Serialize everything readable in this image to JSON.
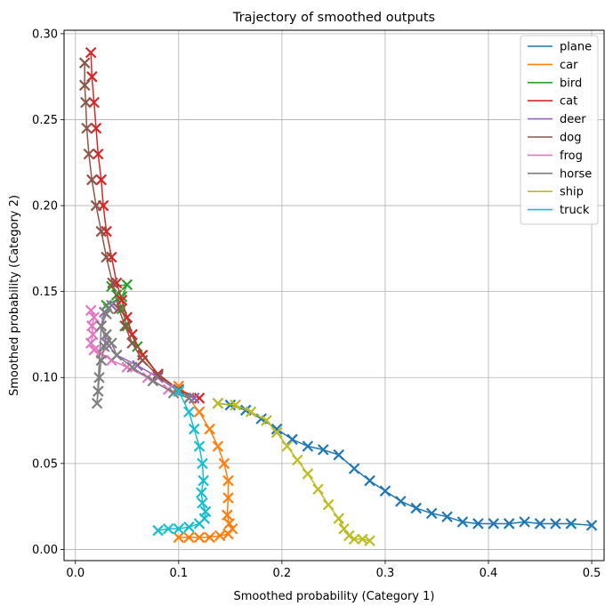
{
  "chart_data": {
    "type": "line",
    "title": "Trajectory of smoothed outputs",
    "xlabel": "Smoothed probability (Category 1)",
    "ylabel": "Smoothed probability (Category 2)",
    "xlim": [
      -0.011,
      0.512
    ],
    "ylim": [
      -0.0065,
      0.302
    ],
    "xticks": [
      0.0,
      0.1,
      0.2,
      0.3,
      0.4,
      0.5
    ],
    "xtick_labels": [
      "0.0",
      "0.1",
      "0.2",
      "0.3",
      "0.4",
      "0.5"
    ],
    "yticks": [
      0.0,
      0.05,
      0.1,
      0.15,
      0.2,
      0.25,
      0.3
    ],
    "ytick_labels": [
      "0.00",
      "0.05",
      "0.10",
      "0.15",
      "0.20",
      "0.25",
      "0.30"
    ],
    "grid": true,
    "legend_position": "top-right",
    "marker": "x",
    "series": [
      {
        "name": "plane",
        "color": "#1f77b4",
        "x": [
          0.138,
          0.15,
          0.165,
          0.18,
          0.195,
          0.21,
          0.225,
          0.24,
          0.255,
          0.27,
          0.285,
          0.3,
          0.315,
          0.33,
          0.345,
          0.36,
          0.375,
          0.39,
          0.405,
          0.42,
          0.435,
          0.45,
          0.465,
          0.48,
          0.5
        ],
        "y": [
          0.085,
          0.084,
          0.081,
          0.076,
          0.07,
          0.064,
          0.06,
          0.058,
          0.055,
          0.047,
          0.04,
          0.034,
          0.028,
          0.024,
          0.021,
          0.019,
          0.016,
          0.015,
          0.015,
          0.015,
          0.016,
          0.015,
          0.015,
          0.015,
          0.014
        ]
      },
      {
        "name": "car",
        "color": "#ff7f0e",
        "x": [
          0.1,
          0.11,
          0.12,
          0.13,
          0.138,
          0.144,
          0.148,
          0.148,
          0.147,
          0.149,
          0.152,
          0.148,
          0.14,
          0.13,
          0.12,
          0.11,
          0.1
        ],
        "y": [
          0.095,
          0.088,
          0.08,
          0.07,
          0.06,
          0.05,
          0.04,
          0.03,
          0.02,
          0.015,
          0.012,
          0.009,
          0.008,
          0.007,
          0.007,
          0.007,
          0.007
        ]
      },
      {
        "name": "bird",
        "color": "#2ca02c",
        "x": [
          0.115,
          0.1,
          0.08,
          0.06,
          0.05,
          0.045,
          0.04,
          0.035,
          0.05,
          0.045,
          0.03
        ],
        "y": [
          0.088,
          0.093,
          0.102,
          0.118,
          0.13,
          0.14,
          0.148,
          0.153,
          0.154,
          0.147,
          0.142
        ]
      },
      {
        "name": "cat",
        "color": "#d62728",
        "x": [
          0.12,
          0.1,
          0.08,
          0.065,
          0.055,
          0.05,
          0.045,
          0.04,
          0.035,
          0.03,
          0.027,
          0.025,
          0.022,
          0.02,
          0.018,
          0.016,
          0.015
        ],
        "y": [
          0.088,
          0.093,
          0.102,
          0.113,
          0.125,
          0.135,
          0.145,
          0.155,
          0.17,
          0.185,
          0.2,
          0.215,
          0.23,
          0.245,
          0.26,
          0.275,
          0.289
        ]
      },
      {
        "name": "deer",
        "color": "#9467bd",
        "x": [
          0.115,
          0.1,
          0.08,
          0.06,
          0.04,
          0.03,
          0.025,
          0.028,
          0.035
        ],
        "y": [
          0.088,
          0.092,
          0.1,
          0.107,
          0.113,
          0.12,
          0.13,
          0.138,
          0.142
        ]
      },
      {
        "name": "dog",
        "color": "#8c564b",
        "x": [
          0.11,
          0.1,
          0.08,
          0.065,
          0.055,
          0.048,
          0.042,
          0.036,
          0.03,
          0.025,
          0.02,
          0.016,
          0.013,
          0.011,
          0.01,
          0.009,
          0.009
        ],
        "y": [
          0.088,
          0.093,
          0.101,
          0.11,
          0.12,
          0.13,
          0.14,
          0.155,
          0.17,
          0.185,
          0.2,
          0.215,
          0.23,
          0.245,
          0.26,
          0.27,
          0.283
        ]
      },
      {
        "name": "frog",
        "color": "#e377c2",
        "x": [
          0.11,
          0.09,
          0.07,
          0.05,
          0.035,
          0.025,
          0.018,
          0.015,
          0.017,
          0.016,
          0.018,
          0.015
        ],
        "y": [
          0.088,
          0.093,
          0.1,
          0.106,
          0.11,
          0.114,
          0.116,
          0.12,
          0.125,
          0.13,
          0.135,
          0.139
        ]
      },
      {
        "name": "horse",
        "color": "#7f7f7f",
        "x": [
          0.11,
          0.095,
          0.075,
          0.055,
          0.04,
          0.035,
          0.03,
          0.028,
          0.025,
          0.023,
          0.022,
          0.021,
          0.025,
          0.03,
          0.032
        ],
        "y": [
          0.088,
          0.091,
          0.098,
          0.106,
          0.113,
          0.12,
          0.125,
          0.118,
          0.11,
          0.1,
          0.092,
          0.085,
          0.13,
          0.137,
          0.14
        ]
      },
      {
        "name": "ship",
        "color": "#bcbd22",
        "x": [
          0.138,
          0.155,
          0.17,
          0.185,
          0.195,
          0.205,
          0.215,
          0.225,
          0.235,
          0.245,
          0.255,
          0.26,
          0.265,
          0.27,
          0.278,
          0.285
        ],
        "y": [
          0.085,
          0.084,
          0.08,
          0.075,
          0.068,
          0.06,
          0.052,
          0.044,
          0.035,
          0.026,
          0.018,
          0.012,
          0.008,
          0.006,
          0.006,
          0.005
        ]
      },
      {
        "name": "truck",
        "color": "#17becf",
        "x": [
          0.1,
          0.11,
          0.115,
          0.12,
          0.123,
          0.124,
          0.122,
          0.123,
          0.126,
          0.125,
          0.12,
          0.11,
          0.1,
          0.09,
          0.08
        ],
        "y": [
          0.092,
          0.08,
          0.07,
          0.06,
          0.05,
          0.04,
          0.033,
          0.027,
          0.022,
          0.018,
          0.015,
          0.013,
          0.012,
          0.012,
          0.011
        ]
      }
    ]
  }
}
